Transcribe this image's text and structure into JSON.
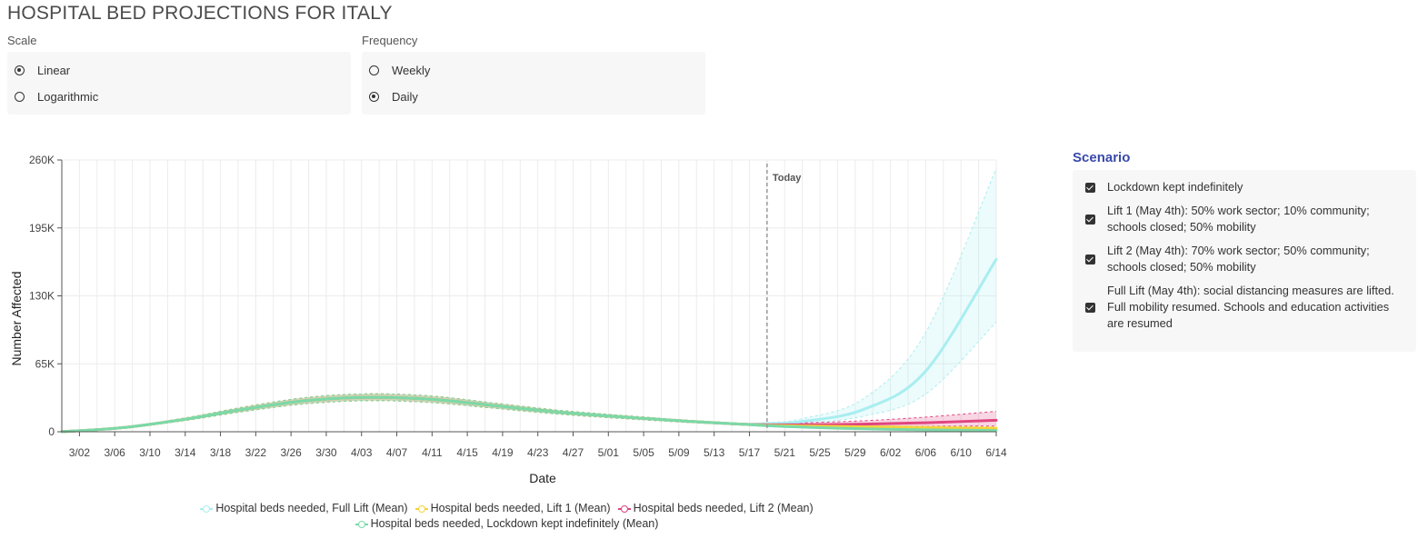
{
  "title": "HOSPITAL BED PROJECTIONS FOR ITALY",
  "controls": {
    "scale": {
      "label": "Scale",
      "options": [
        {
          "label": "Linear",
          "selected": true
        },
        {
          "label": "Logarithmic",
          "selected": false
        }
      ]
    },
    "frequency": {
      "label": "Frequency",
      "options": [
        {
          "label": "Weekly",
          "selected": false
        },
        {
          "label": "Daily",
          "selected": true
        }
      ]
    }
  },
  "scenario": {
    "title": "Scenario",
    "items": [
      {
        "label": "Lockdown kept indefinitely",
        "checked": true
      },
      {
        "label": "Lift 1 (May 4th): 50% work sector; 10% community; schools closed; 50% mobility",
        "checked": true
      },
      {
        "label": "Lift 2 (May 4th): 70% work sector; 50% community; schools closed; 50% mobility",
        "checked": true
      },
      {
        "label": "Full Lift (May 4th): social distancing measures are lifted. Full mobility resumed. Schools and education activities are resumed",
        "checked": true
      }
    ]
  },
  "chart_data": {
    "type": "line",
    "xlabel": "Date",
    "ylabel": "Number Affected",
    "ylim": [
      0,
      260000
    ],
    "y_ticks": [
      0,
      65000,
      130000,
      195000,
      260000
    ],
    "y_tick_labels": [
      "0",
      "65K",
      "130K",
      "195K",
      "260K"
    ],
    "x_tick_labels": [
      "3/02",
      "3/06",
      "3/10",
      "3/14",
      "3/18",
      "3/22",
      "3/26",
      "3/30",
      "4/03",
      "4/07",
      "4/11",
      "4/15",
      "4/19",
      "4/23",
      "4/27",
      "5/01",
      "5/05",
      "5/09",
      "5/13",
      "5/17",
      "5/21",
      "5/25",
      "5/29",
      "6/02",
      "6/06",
      "6/10",
      "6/14"
    ],
    "x_range": [
      "2020-02-29",
      "2020-06-14"
    ],
    "grid": true,
    "legend_position": "bottom",
    "today": {
      "date": "2020-05-19",
      "label": "Today"
    },
    "dates": [
      "2020-02-29",
      "2020-03-07",
      "2020-03-14",
      "2020-03-21",
      "2020-03-28",
      "2020-04-04",
      "2020-04-11",
      "2020-04-18",
      "2020-04-25",
      "2020-05-02",
      "2020-05-09",
      "2020-05-16",
      "2020-05-19",
      "2020-05-23",
      "2020-05-30",
      "2020-06-06",
      "2020-06-14"
    ],
    "series": [
      {
        "name": "Hospital beds needed, Lockdown kept indefinitely (Mean)",
        "color": "#7ad9a9",
        "values": [
          0,
          4000,
          12000,
          22000,
          30000,
          33000,
          31000,
          25000,
          19000,
          14500,
          10500,
          7300,
          5800,
          4400,
          2800,
          1800,
          1200
        ],
        "lower": [
          0,
          3600,
          10800,
          19800,
          27000,
          29700,
          27900,
          22500,
          17100,
          13000,
          9400,
          6500,
          5000,
          3800,
          2300,
          1400,
          900
        ],
        "upper": [
          0,
          4400,
          13200,
          24200,
          33000,
          36300,
          34100,
          27500,
          20900,
          16000,
          11600,
          8100,
          6600,
          5000,
          3300,
          2200,
          1500
        ]
      },
      {
        "name": "Hospital beds needed, Lift 1 (Mean)",
        "color": "#f2d43a",
        "values": [
          0,
          4000,
          12000,
          22000,
          30000,
          33000,
          31000,
          25000,
          19000,
          14500,
          10500,
          7300,
          6200,
          5500,
          4700,
          3900,
          3300
        ],
        "lower": [
          0,
          3600,
          10800,
          19800,
          27000,
          29700,
          27900,
          22500,
          17100,
          13000,
          9400,
          6500,
          5400,
          4600,
          3700,
          2900,
          2300
        ],
        "upper": [
          0,
          4400,
          13200,
          24200,
          33000,
          36300,
          34100,
          27500,
          20900,
          16000,
          11600,
          8100,
          7100,
          6500,
          5900,
          5200,
          4600
        ]
      },
      {
        "name": "Hospital beds needed, Lift 2 (Mean)",
        "color": "#e0457f",
        "values": [
          0,
          4000,
          12000,
          22000,
          30000,
          33000,
          31000,
          25000,
          19000,
          14500,
          10500,
          7300,
          6700,
          6600,
          7300,
          8600,
          11000
        ],
        "lower": [
          0,
          3600,
          10800,
          19800,
          27000,
          29700,
          27900,
          22500,
          17100,
          13000,
          9400,
          6500,
          5600,
          5100,
          5000,
          5200,
          5500
        ],
        "upper": [
          0,
          4400,
          13200,
          24200,
          33000,
          36300,
          34100,
          27500,
          20900,
          16000,
          11600,
          8100,
          7800,
          8500,
          10500,
          14000,
          19500
        ]
      },
      {
        "name": "Hospital beds needed, Full Lift (Mean)",
        "color": "#a8eef0",
        "values": [
          0,
          4000,
          12000,
          22000,
          30000,
          33000,
          31000,
          25000,
          19000,
          14500,
          10500,
          7300,
          7700,
          9800,
          21500,
          58000,
          165000
        ],
        "lower": [
          0,
          3600,
          10800,
          19800,
          27000,
          29700,
          27900,
          22500,
          17100,
          13000,
          9400,
          6500,
          6600,
          8000,
          15000,
          36000,
          105000
        ],
        "upper": [
          0,
          4400,
          13200,
          24200,
          33000,
          36300,
          34100,
          27500,
          20900,
          16000,
          11600,
          8100,
          8800,
          12500,
          32000,
          95000,
          252000
        ]
      }
    ]
  },
  "colors": {
    "axis": "#555555",
    "grid": "#ececec",
    "today_line": "#999999",
    "accent": "#3949ab"
  }
}
